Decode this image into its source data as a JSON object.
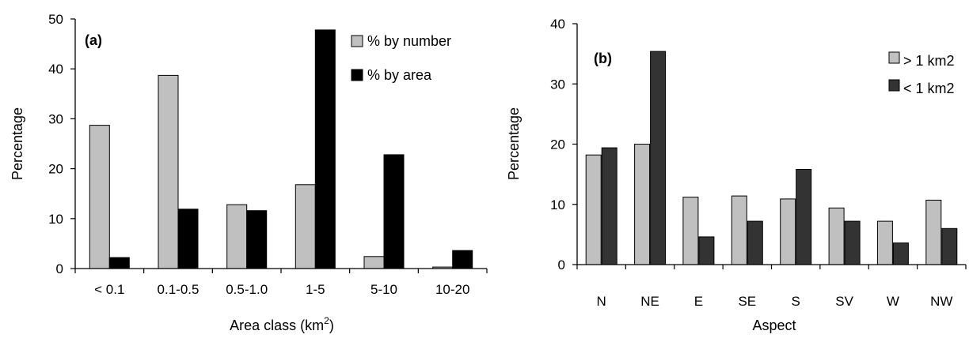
{
  "chart_data": [
    {
      "type": "bar",
      "panel_label": "(a)",
      "categories": [
        "< 0.1",
        "0.1-0.5",
        "0.5-1.0",
        "1-5",
        "5-10",
        "10-20"
      ],
      "series": [
        {
          "name": "% by number",
          "color": "#c0c0c0",
          "values": [
            28.7,
            38.7,
            12.8,
            16.8,
            2.4,
            0.3
          ]
        },
        {
          "name": "% by area",
          "color": "#000000",
          "values": [
            2.2,
            11.9,
            11.6,
            47.8,
            22.8,
            3.6
          ]
        }
      ],
      "xlabel": "Area class (km",
      "xlabel_sup": "2",
      "xlabel_end": ")",
      "ylabel": "Percentage",
      "ylim": [
        0,
        50
      ],
      "yticks": [
        "0",
        "10",
        "20",
        "30",
        "40",
        "50"
      ],
      "grid": false,
      "legend_position": "top-right"
    },
    {
      "type": "bar",
      "panel_label": "(b)",
      "categories": [
        "N",
        "NE",
        "E",
        "SE",
        "S",
        "SV",
        "W",
        "NW"
      ],
      "series": [
        {
          "name": "> 1 km2",
          "color": "#c0c0c0",
          "values": [
            18.2,
            20.0,
            11.2,
            11.4,
            10.9,
            9.4,
            7.2,
            10.7
          ]
        },
        {
          "name": "< 1 km2",
          "color": "#333333",
          "values": [
            19.4,
            35.4,
            4.6,
            7.2,
            15.8,
            7.2,
            3.6,
            6.0
          ]
        }
      ],
      "xlabel": "Aspect",
      "ylabel": "Percentage",
      "ylim": [
        0,
        40
      ],
      "yticks": [
        "0",
        "10",
        "20",
        "30",
        "40"
      ],
      "grid": false,
      "legend_position": "top-right"
    }
  ]
}
